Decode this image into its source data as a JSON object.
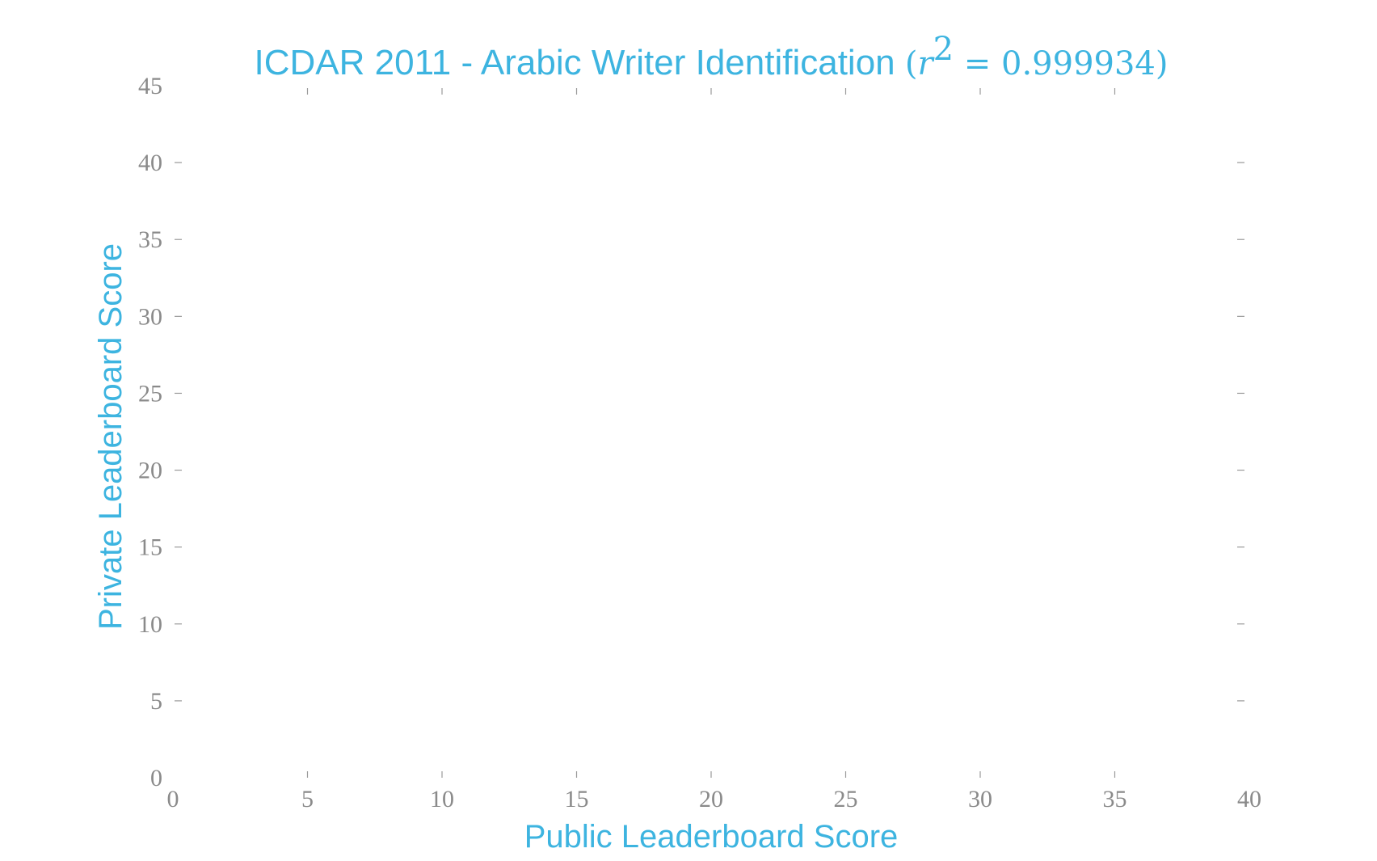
{
  "chart_data": {
    "type": "scatter",
    "title": {
      "text": "ICDAR 2011 - Arabic Writer Identification ",
      "math_open": "(",
      "math_var": "r",
      "math_sup": "2",
      "math_rest": " = 0.999934)"
    },
    "xlabel": "Public Leaderboard Score",
    "ylabel": "Private Leaderboard Score",
    "xlim": [
      0,
      40
    ],
    "ylim": [
      0,
      45
    ],
    "xticks": [
      0,
      5,
      10,
      15,
      20,
      25,
      30,
      35,
      40
    ],
    "yticks": [
      0,
      5,
      10,
      15,
      20,
      25,
      30,
      35,
      40,
      45
    ],
    "points": [],
    "grid": false,
    "colors": {
      "accent": "#3db4e0",
      "tick": "#8a8a8a"
    }
  }
}
